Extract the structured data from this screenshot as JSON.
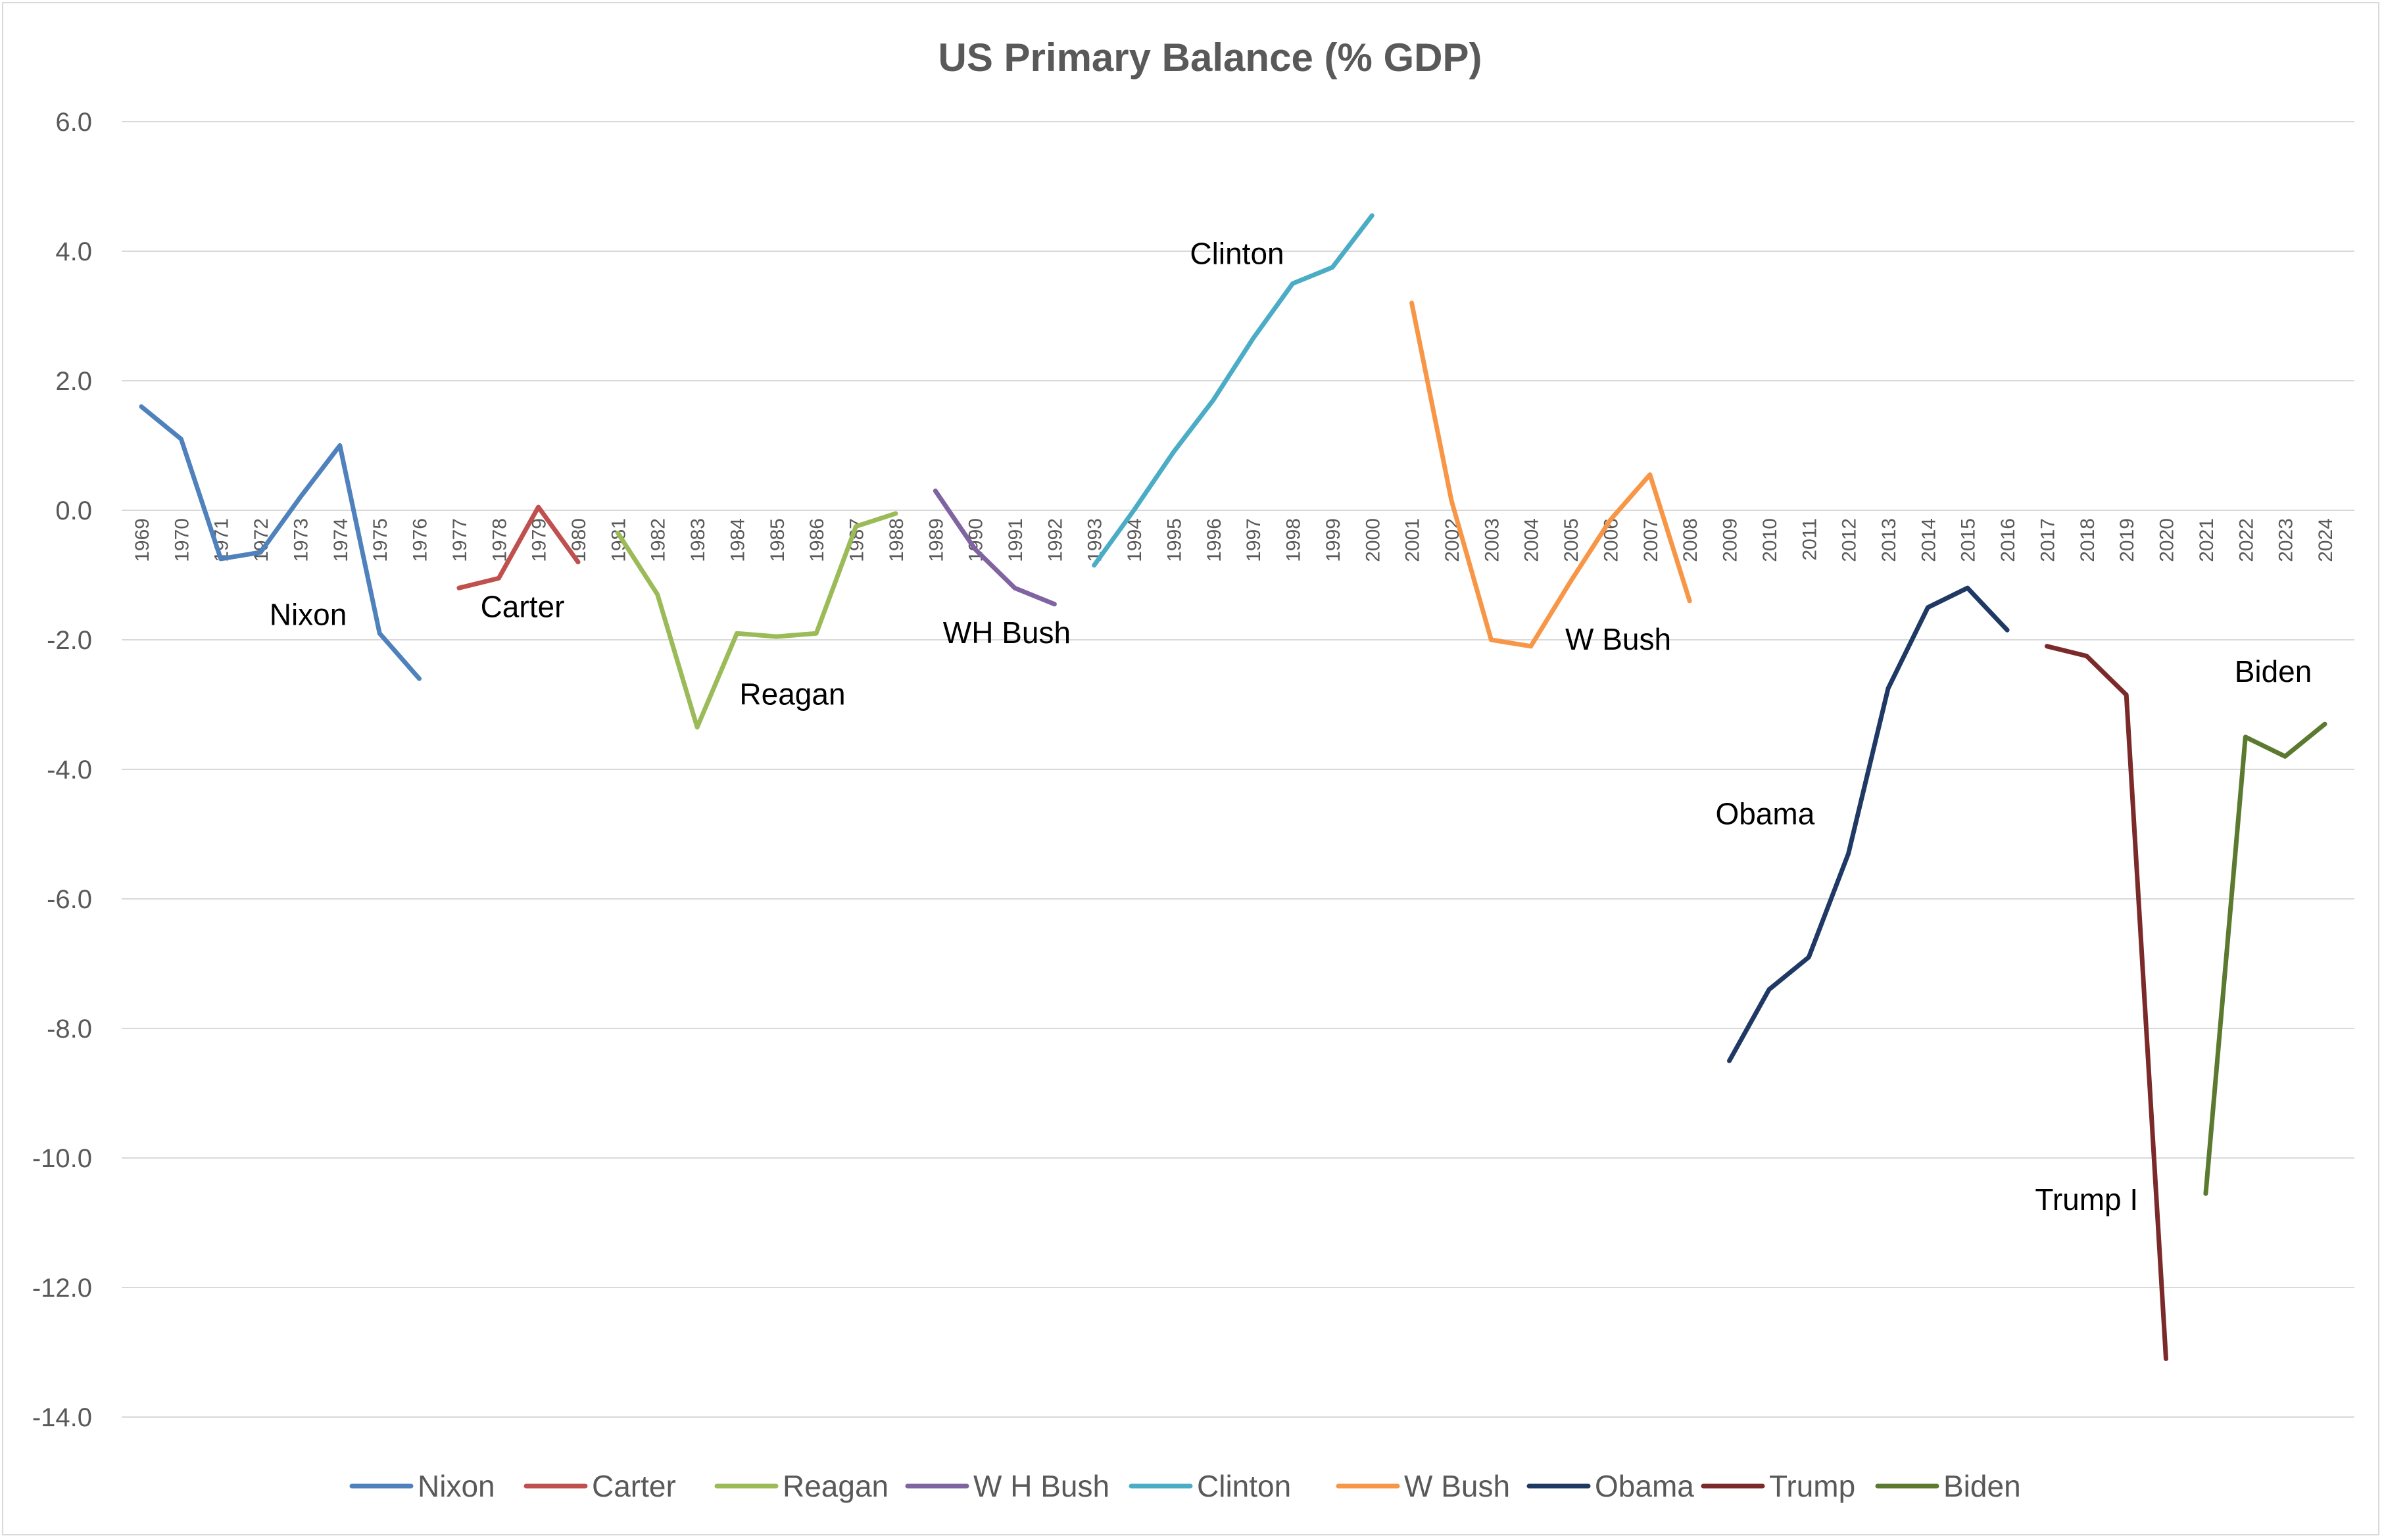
{
  "chart_data": {
    "type": "line",
    "title": "US Primary Balance (% GDP)",
    "xlabel": "",
    "ylabel": "",
    "ylim": [
      -14,
      6
    ],
    "yticks": [
      "6.0",
      "4.0",
      "2.0",
      "0.0",
      "-2.0",
      "-4.0",
      "-6.0",
      "-8.0",
      "-10.0",
      "-12.0",
      "-14.0"
    ],
    "ytick_values": [
      6,
      4,
      2,
      0,
      -2,
      -4,
      -6,
      -8,
      -10,
      -12,
      -14
    ],
    "categories": [
      "1969",
      "1970",
      "1971",
      "1972",
      "1973",
      "1974",
      "1975",
      "1976",
      "1977",
      "1978",
      "1979",
      "1980",
      "1981",
      "1982",
      "1983",
      "1984",
      "1985",
      "1986",
      "1987",
      "1988",
      "1989",
      "1990",
      "1991",
      "1992",
      "1993",
      "1994",
      "1995",
      "1996",
      "1997",
      "1998",
      "1999",
      "2000",
      "2001",
      "2002",
      "2003",
      "2004",
      "2005",
      "2006",
      "2007",
      "2008",
      "2009",
      "2010",
      "2011",
      "2012",
      "2013",
      "2014",
      "2015",
      "2016",
      "2017",
      "2018",
      "2019",
      "2020",
      "2021",
      "2022",
      "2023",
      "2024"
    ],
    "grid": true,
    "legend_position": "bottom",
    "series": [
      {
        "name": "Nixon",
        "color": "#4f81bd",
        "x": [
          "1969",
          "1970",
          "1971",
          "1972",
          "1973",
          "1974",
          "1975",
          "1976"
        ],
        "values": [
          1.6,
          1.1,
          -0.75,
          -0.65,
          0.2,
          1.0,
          -1.9,
          -2.6
        ]
      },
      {
        "name": "Carter",
        "color": "#c0504d",
        "x": [
          "1977",
          "1978",
          "1979",
          "1980"
        ],
        "values": [
          -1.2,
          -1.05,
          0.05,
          -0.8
        ]
      },
      {
        "name": "Reagan",
        "color": "#9bbb59",
        "x": [
          "1981",
          "1982",
          "1983",
          "1984",
          "1985",
          "1986",
          "1987",
          "1988"
        ],
        "values": [
          -0.35,
          -1.3,
          -3.35,
          -1.9,
          -1.95,
          -1.9,
          -0.25,
          -0.05
        ]
      },
      {
        "name": "W H Bush",
        "color": "#8064a2",
        "x": [
          "1989",
          "1990",
          "1991",
          "1992"
        ],
        "values": [
          0.3,
          -0.6,
          -1.2,
          -1.45
        ]
      },
      {
        "name": "Clinton",
        "color": "#4bacc6",
        "x": [
          "1993",
          "1994",
          "1995",
          "1996",
          "1997",
          "1998",
          "1999",
          "2000"
        ],
        "values": [
          -0.85,
          0.0,
          0.9,
          1.7,
          2.65,
          3.5,
          3.75,
          4.55
        ]
      },
      {
        "name": "W Bush",
        "color": "#f79646",
        "x": [
          "2001",
          "2002",
          "2003",
          "2004",
          "2005",
          "2006",
          "2007",
          "2008"
        ],
        "values": [
          3.2,
          0.15,
          -2.0,
          -2.1,
          -1.1,
          -0.15,
          0.55,
          -1.4
        ]
      },
      {
        "name": "Obama",
        "color": "#1f3864",
        "x": [
          "2009",
          "2010",
          "2011",
          "2012",
          "2013",
          "2014",
          "2015",
          "2016"
        ],
        "values": [
          -8.5,
          -7.4,
          -6.9,
          -5.3,
          -2.75,
          -1.5,
          -1.2,
          -1.85
        ]
      },
      {
        "name": "Trump",
        "color": "#7b2a2a",
        "x": [
          "2017",
          "2018",
          "2019",
          "2020"
        ],
        "values": [
          -2.1,
          -2.25,
          -2.85,
          -13.1
        ]
      },
      {
        "name": "Biden",
        "color": "#5b7a2f",
        "x": [
          "2021",
          "2022",
          "2023",
          "2024"
        ],
        "values": [
          -10.55,
          -3.5,
          -3.8,
          -3.3
        ]
      }
    ],
    "annotations": [
      {
        "text": "Nixon",
        "x": 1973.2,
        "y": -1.77
      },
      {
        "text": "Carter",
        "x": 1978.6,
        "y": -1.65
      },
      {
        "text": "Reagan",
        "x": 1985.4,
        "y": -3.0
      },
      {
        "text": "WH Bush",
        "x": 1990.8,
        "y": -2.05
      },
      {
        "text": "Clinton",
        "x": 1996.6,
        "y": 3.8
      },
      {
        "text": "W Bush",
        "x": 2006.2,
        "y": -2.15
      },
      {
        "text": "Obama",
        "x": 2009.9,
        "y": -4.85
      },
      {
        "text": "Trump I",
        "x": 2018.0,
        "y": -10.8
      },
      {
        "text": "Biden",
        "x": 2022.7,
        "y": -2.65
      }
    ]
  }
}
